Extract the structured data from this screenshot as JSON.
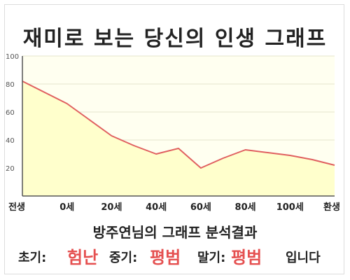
{
  "title": "재미로 보는 당신의 인생 그래프",
  "summary": "방주연님의 그래프 분석결과",
  "verdict": {
    "early_label": "초기:",
    "early_value": "험난",
    "mid_label": "중기:",
    "mid_value": "평범",
    "late_label": "말기:",
    "late_value": "평범",
    "suffix": "입니다"
  },
  "chart_data": {
    "type": "area",
    "x_labels": [
      "전생",
      "0세",
      "20세",
      "40세",
      "60세",
      "80세",
      "100세",
      "환생"
    ],
    "y_ticks": [
      20,
      40,
      60,
      80,
      100
    ],
    "ylim": [
      0,
      100
    ],
    "points": [
      {
        "x": 0,
        "y": 82
      },
      {
        "x": 1,
        "y": 66
      },
      {
        "x": 2,
        "y": 43
      },
      {
        "x": 2.5,
        "y": 36
      },
      {
        "x": 3,
        "y": 30
      },
      {
        "x": 3.5,
        "y": 34
      },
      {
        "x": 4,
        "y": 20
      },
      {
        "x": 4.5,
        "y": 27
      },
      {
        "x": 5,
        "y": 33
      },
      {
        "x": 5.5,
        "y": 31
      },
      {
        "x": 6,
        "y": 29
      },
      {
        "x": 6.5,
        "y": 26
      },
      {
        "x": 7,
        "y": 22
      }
    ],
    "fill_color": "#ffffcc",
    "line_color": "#e06060",
    "grid": true
  }
}
